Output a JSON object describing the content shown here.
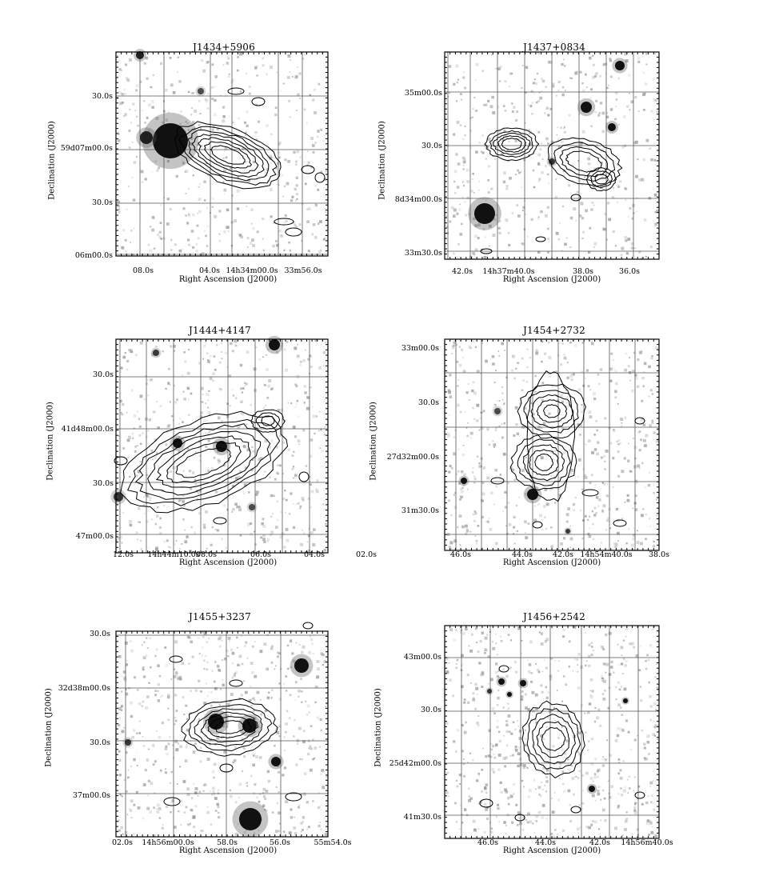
{
  "figure": {
    "panels": [
      {
        "title": "J1434+5906",
        "xlabel": "Right Ascension (J2000)",
        "ylabel": "Declination (J2000)",
        "yticks": [
          "30.0s",
          "59d07m00.0s",
          "30.0s",
          "06m00.0s"
        ],
        "xticks": [
          "08.0s",
          "04.0s",
          "14h34m00.0s",
          "33m56.0s"
        ]
      },
      {
        "title": "J1437+0834",
        "xlabel": "Right Ascension (J2000)",
        "ylabel": "Declination (J2000)",
        "yticks": [
          "35m00.0s",
          "30.0s",
          "8d34m00.0s",
          "33m30.0s"
        ],
        "xticks": [
          "42.0s",
          "14h37m40.0s",
          "38.0s",
          "36.0s"
        ]
      },
      {
        "title": "J1444+4147",
        "xlabel": "Right Ascension (J2000)",
        "ylabel": "Declination (J2000)",
        "yticks": [
          "30.0s",
          "41d48m00.0s",
          "30.0s",
          "47m00.0s"
        ],
        "xticks": [
          "12.0s",
          "14h44m10.0s",
          "08.0s",
          "06.0s",
          "04.0s",
          "02.0s"
        ]
      },
      {
        "title": "J1454+2732",
        "xlabel": "Right Ascension (J2000)",
        "ylabel": "Declination (J2000)",
        "yticks": [
          "33m00.0s",
          "30.0s",
          "27d32m00.0s",
          "31m30.0s"
        ],
        "xticks": [
          "46.0s",
          "44.0s",
          "42.0s",
          "14h54m40.0s",
          "38.0s"
        ]
      },
      {
        "title": "J1455+3237",
        "xlabel": "Right Ascension (J2000)",
        "ylabel": "Declination (J2000)",
        "yticks": [
          "30.0s",
          "32d38m00.0s",
          "30.0s",
          "37m00.0s"
        ],
        "xticks": [
          "02.0s",
          "14h56m00.0s",
          "58.0s",
          "56.0s",
          "55m54.0s"
        ]
      },
      {
        "title": "J1456+2542",
        "xlabel": "Right Ascension (J2000)",
        "ylabel": "Declination (J2000)",
        "yticks": [
          "43m00.0s",
          "30.0s",
          "25d42m00.0s",
          "41m30.0s"
        ],
        "xticks": [
          "46.0s",
          "44.0s",
          "42.0s",
          "14h56m40.0s"
        ]
      }
    ]
  },
  "colors": {
    "frame": "#000000",
    "grid": "#555555",
    "contour": "#000000",
    "noise": "#9a9a9a"
  }
}
